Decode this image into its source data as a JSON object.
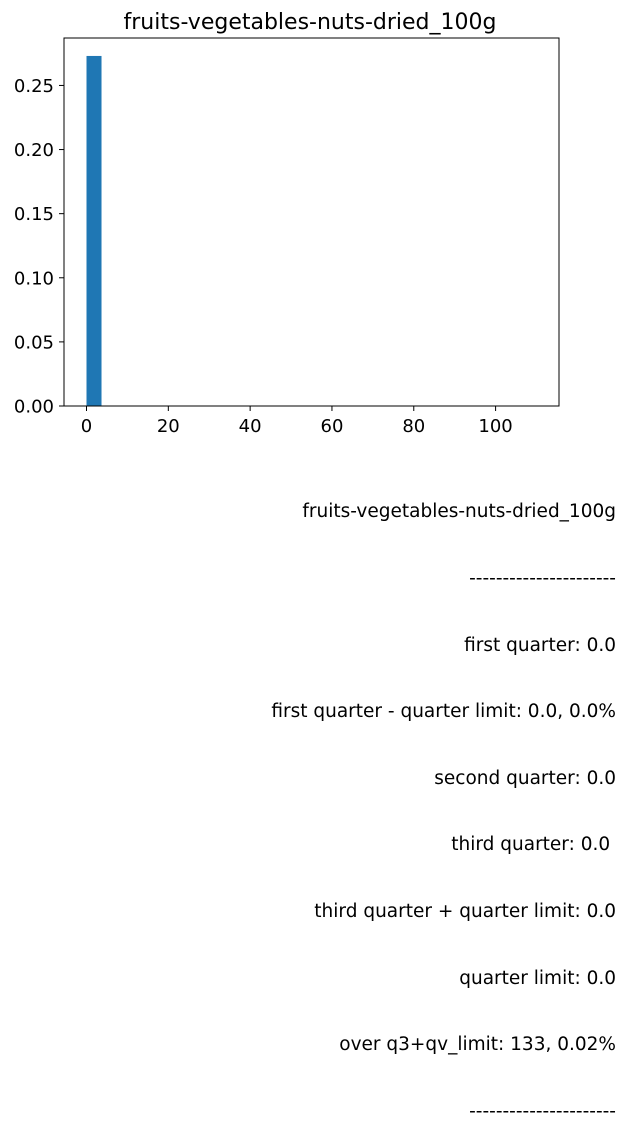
{
  "chart_data": {
    "type": "bar",
    "title": "fruits-vegetables-nuts-dried_100g",
    "xlabel": "",
    "ylabel": "",
    "bins": [
      {
        "x0": 0.0,
        "x1": 3.67,
        "value": 0.273
      }
    ],
    "xlim": [
      -5.5,
      115.5
    ],
    "ylim": [
      0,
      0.287
    ],
    "xticks": [
      0,
      20,
      40,
      60,
      80,
      100
    ],
    "yticks": [
      0.0,
      0.05,
      0.1,
      0.15,
      0.2,
      0.25
    ],
    "ytick_labels": [
      "0.00",
      "0.05",
      "0.10",
      "0.15",
      "0.20",
      "0.25"
    ],
    "bar_color": "#1f77b4",
    "grid": false
  },
  "stats": {
    "name": "fruits-vegetables-nuts-dried_100g",
    "sep1": "----------------------",
    "first_quarter": "first quarter: 0.0",
    "first_quarter_limit": "first quarter - quarter limit: 0.0, 0.0%",
    "second_quarter": "second quarter: 0.0",
    "third_quarter": "third quarter: 0.0 ",
    "third_quarter_limit": "third quarter + quarter limit: 0.0",
    "quarter_limit": "quarter limit: 0.0",
    "over_limit": "over q3+qv_limit: 133, 0.02%",
    "sep2": "----------------------"
  }
}
